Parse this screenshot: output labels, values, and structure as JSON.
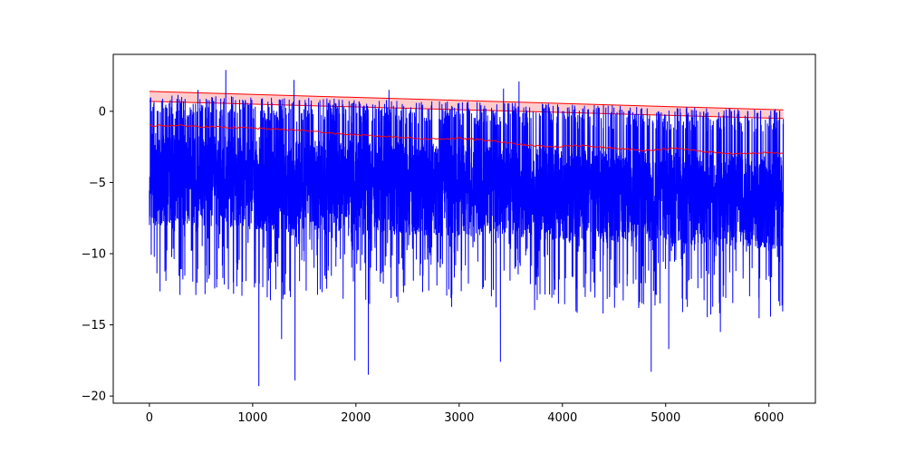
{
  "chart_data": {
    "type": "line",
    "title": "",
    "xlabel": "",
    "ylabel": "",
    "xlim": [
      -350,
      6450
    ],
    "ylim": [
      -20.5,
      4.0
    ],
    "grid": false,
    "legend": "none",
    "x_ticks": [
      {
        "value": 0,
        "label": "0"
      },
      {
        "value": 1000,
        "label": "1000"
      },
      {
        "value": 2000,
        "label": "2000"
      },
      {
        "value": 3000,
        "label": "3000"
      },
      {
        "value": 4000,
        "label": "4000"
      },
      {
        "value": 5000,
        "label": "5000"
      },
      {
        "value": 6000,
        "label": "6000"
      }
    ],
    "y_ticks": [
      {
        "value": 0,
        "label": "0"
      },
      {
        "value": -5,
        "label": "−5"
      },
      {
        "value": -10,
        "label": "−10"
      },
      {
        "value": -15,
        "label": "−15"
      },
      {
        "value": -20,
        "label": "−20"
      }
    ],
    "series": [
      {
        "style": "noisy-signal",
        "color": "#0000ff",
        "n_points": 6140,
        "x_range": [
          0,
          6140
        ],
        "typical_band": [
          -7.5,
          -1.0
        ],
        "max_upper": 3.0,
        "peaks": [
          {
            "x": 740,
            "y": 2.9
          },
          {
            "x": 3580,
            "y": 2.1
          },
          {
            "x": 3430,
            "y": 1.6
          },
          {
            "x": 470,
            "y": 1.5
          },
          {
            "x": 1400,
            "y": 2.2
          },
          {
            "x": 2320,
            "y": 1.5
          }
        ],
        "dips": [
          {
            "x": 1060,
            "y": -19.3
          },
          {
            "x": 1410,
            "y": -18.9
          },
          {
            "x": 2120,
            "y": -18.5
          },
          {
            "x": 3400,
            "y": -17.6
          },
          {
            "x": 4860,
            "y": -18.3
          },
          {
            "x": 1990,
            "y": -17.5
          },
          {
            "x": 5030,
            "y": -16.7
          },
          {
            "x": 1280,
            "y": -16.0
          },
          {
            "x": 5530,
            "y": -15.5
          }
        ]
      },
      {
        "style": "moving-average",
        "color": "#ff0000",
        "x": [
          0,
          300,
          600,
          900,
          1200,
          1500,
          1800,
          2100,
          2400,
          2700,
          3000,
          3300,
          3600,
          3900,
          4200,
          4500,
          4800,
          5100,
          5400,
          5700,
          6000,
          6140
        ],
        "y": [
          -1.0,
          -1.0,
          -1.1,
          -1.15,
          -1.25,
          -1.35,
          -1.55,
          -1.7,
          -1.8,
          -1.95,
          -1.9,
          -2.05,
          -2.35,
          -2.5,
          -2.4,
          -2.6,
          -2.75,
          -2.6,
          -2.85,
          -3.0,
          -2.9,
          -2.95
        ]
      },
      {
        "style": "confidence-band",
        "color": "#ff0000",
        "fill": "#ffcccc",
        "x": [
          0,
          6140
        ],
        "upper": [
          1.4,
          0.1
        ],
        "lower": [
          0.7,
          -0.5
        ]
      }
    ]
  }
}
